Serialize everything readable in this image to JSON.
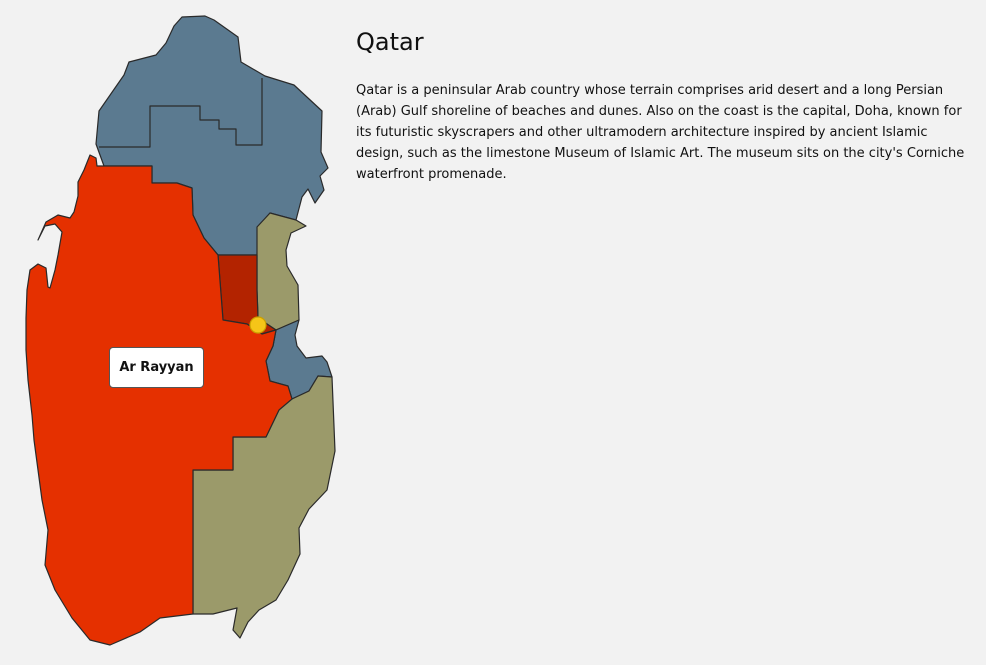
{
  "country": {
    "name": "Qatar",
    "description": "Qatar is a peninsular Arab country whose terrain comprises arid desert and a long Persian (Arab) Gulf shoreline of beaches and dunes. Also on the coast is the capital, Doha, known for its futuristic skyscrapers and other ultramodern architecture inspired by ancient Islamic design, such as the limestone Museum of Islamic Art. The museum sits on the city's Corniche waterfront promenade."
  },
  "map": {
    "hovered_region": "Ar Rayyan",
    "colors": {
      "ar_rayyan": "#e53000",
      "doha": "#b32300",
      "north": "#5b7a90",
      "east": "#9b9a6a",
      "capital_marker": "#f5c518"
    }
  }
}
